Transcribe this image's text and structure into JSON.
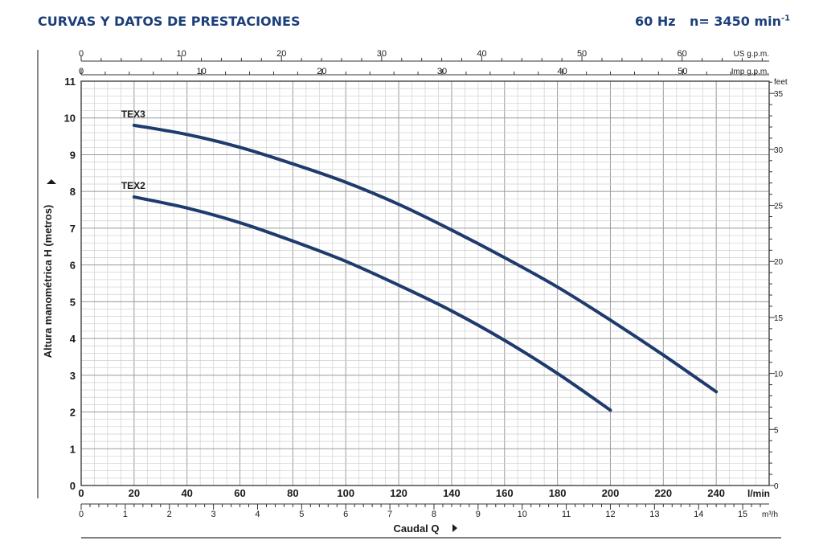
{
  "header": {
    "title": "CURVAS Y DATOS DE PRESTACIONES",
    "frequency": "60 Hz",
    "speed": "n= 3450 min",
    "speed_sup": "-1"
  },
  "chart_data": {
    "type": "line",
    "ylabel": "Altura manométrica H (metros)",
    "xlabel": "Caudal Q",
    "x_units": "l/min",
    "ylim": [
      0,
      11
    ],
    "xlim": [
      0,
      260
    ],
    "grid": true,
    "x_ticks": [
      0,
      20,
      40,
      60,
      80,
      100,
      120,
      140,
      160,
      180,
      200,
      220,
      240
    ],
    "y_ticks": [
      0,
      1,
      2,
      3,
      4,
      5,
      6,
      7,
      8,
      9,
      10,
      11
    ],
    "secondary_axes": {
      "us_gpm": {
        "label": "US g.p.m.",
        "ticks": [
          0,
          10,
          20,
          30,
          40,
          50,
          60
        ]
      },
      "imp_gpm": {
        "label": "Imp g.p.m.",
        "ticks": [
          0,
          10,
          20,
          30,
          40,
          50
        ]
      },
      "feet": {
        "label": "feet",
        "ticks": [
          0,
          5,
          10,
          15,
          20,
          25,
          30,
          35
        ]
      },
      "m3h": {
        "label": "m³/h",
        "ticks": [
          0,
          1,
          2,
          3,
          4,
          5,
          6,
          7,
          8,
          9,
          10,
          11,
          12,
          13,
          14,
          15
        ]
      }
    },
    "series": [
      {
        "name": "TEX3",
        "color": "#1f3b6e",
        "x": [
          20,
          40,
          60,
          80,
          100,
          120,
          140,
          160,
          180,
          200,
          220,
          240
        ],
        "y": [
          9.8,
          9.55,
          9.2,
          8.75,
          8.25,
          7.65,
          6.95,
          6.2,
          5.4,
          4.5,
          3.55,
          2.55
        ]
      },
      {
        "name": "TEX2",
        "color": "#1f3b6e",
        "x": [
          20,
          40,
          60,
          80,
          100,
          120,
          140,
          160,
          180,
          200
        ],
        "y": [
          7.85,
          7.55,
          7.15,
          6.65,
          6.1,
          5.45,
          4.75,
          3.95,
          3.05,
          2.05
        ]
      }
    ]
  }
}
